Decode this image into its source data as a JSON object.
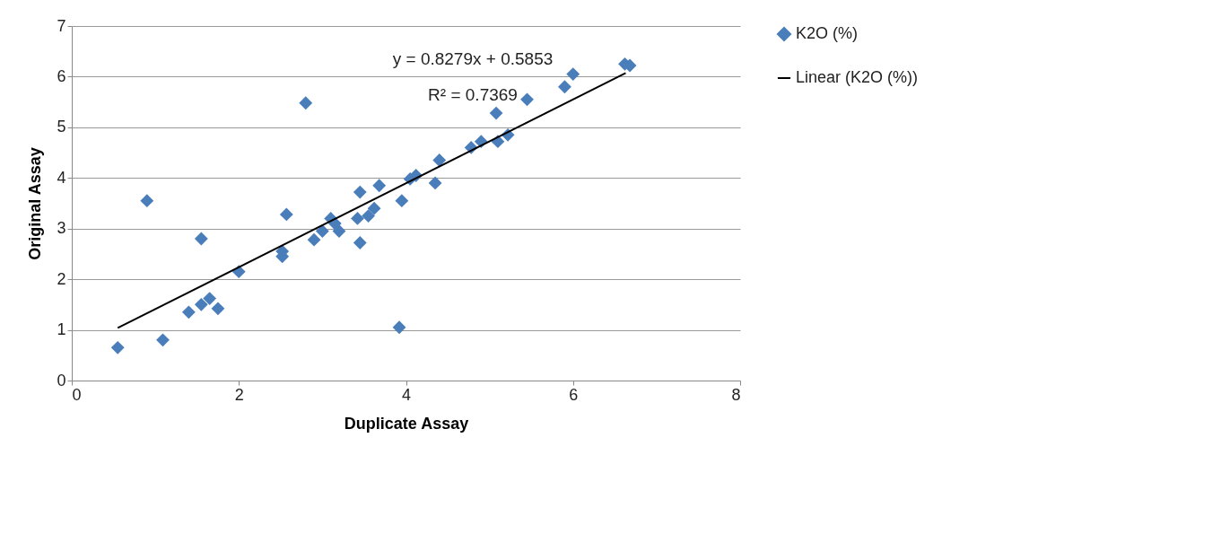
{
  "chart_data": {
    "type": "scatter",
    "xlabel": "Duplicate Assay",
    "ylabel": "Original Assay",
    "xlim": [
      0,
      8
    ],
    "xticks": [
      0,
      2,
      4,
      6,
      8
    ],
    "ylim": [
      0,
      7
    ],
    "yticks": [
      0,
      1,
      2,
      3,
      4,
      5,
      6,
      7
    ],
    "grid": "y",
    "legend": "right",
    "annotations": [
      "y = 0.8279x + 0.5853",
      "R² = 0.7369"
    ],
    "series": [
      {
        "name": "K2O (%)",
        "marker": "diamond",
        "color": "#4a7ebb",
        "x": [
          0.55,
          1.09,
          0.9,
          1.55,
          1.4,
          1.55,
          1.65,
          1.75,
          2.0,
          2.57,
          2.52,
          2.52,
          2.8,
          2.9,
          3.0,
          3.1,
          3.15,
          3.2,
          3.45,
          3.45,
          3.42,
          3.55,
          3.62,
          3.68,
          3.95,
          3.92,
          4.05,
          4.12,
          4.35,
          4.4,
          4.78,
          4.9,
          5.1,
          5.22,
          5.08,
          5.45,
          5.9,
          6.0,
          6.62,
          6.68
        ],
        "values": [
          0.65,
          0.8,
          3.55,
          2.8,
          1.35,
          1.5,
          1.62,
          1.42,
          2.15,
          3.28,
          2.45,
          2.55,
          5.48,
          2.78,
          2.95,
          3.2,
          3.1,
          2.95,
          2.72,
          3.72,
          3.2,
          3.25,
          3.4,
          3.85,
          3.55,
          1.05,
          3.98,
          4.05,
          3.9,
          4.35,
          4.6,
          4.72,
          4.72,
          4.85,
          5.28,
          5.55,
          5.8,
          6.05,
          6.25,
          6.22
        ]
      },
      {
        "name": "Linear (K2O (%))",
        "type": "line",
        "marker": "none",
        "color": "#000000",
        "x": [
          0.55,
          6.63
        ],
        "values": [
          1.04,
          6.07
        ]
      }
    ]
  }
}
